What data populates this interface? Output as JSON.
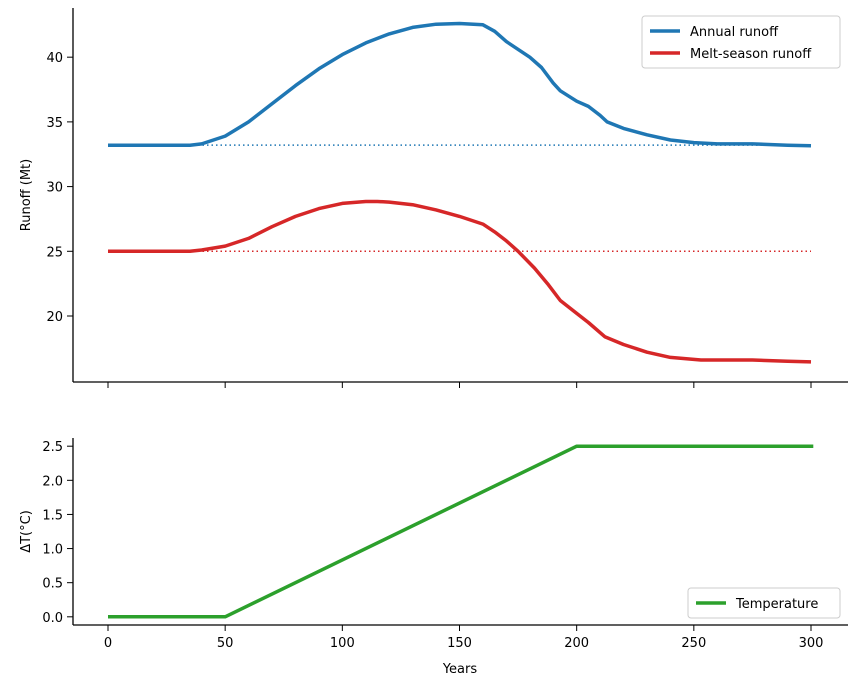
{
  "chart_data": [
    {
      "type": "line",
      "title": "",
      "xlabel": "",
      "ylabel": "Runoff (Mt)",
      "xlim": [
        -15,
        315
      ],
      "ylim": [
        14.9,
        43.8
      ],
      "xticks": [
        0,
        50,
        100,
        150,
        200,
        250,
        300
      ],
      "yticks": [
        20,
        25,
        30,
        35,
        40
      ],
      "legend_position": "top-right",
      "series": [
        {
          "name": "Annual runoff",
          "color": "#1f77b4",
          "x": [
            0,
            35,
            40,
            50,
            60,
            70,
            80,
            90,
            100,
            110,
            120,
            130,
            140,
            150,
            160,
            165,
            170,
            180,
            185,
            190,
            193,
            200,
            205,
            210,
            213,
            220,
            230,
            240,
            250,
            260,
            275,
            290,
            300
          ],
          "y": [
            33.2,
            33.2,
            33.3,
            33.9,
            35.0,
            36.4,
            37.8,
            39.1,
            40.2,
            41.1,
            41.8,
            42.3,
            42.55,
            42.6,
            42.5,
            42.0,
            41.2,
            40.0,
            39.2,
            38.0,
            37.4,
            36.6,
            36.2,
            35.5,
            35.0,
            34.5,
            34.0,
            33.6,
            33.4,
            33.3,
            33.3,
            33.2,
            33.15
          ]
        },
        {
          "name": "Melt-season runoff",
          "color": "#d62728",
          "x": [
            0,
            35,
            40,
            50,
            60,
            70,
            80,
            90,
            100,
            110,
            115,
            120,
            130,
            140,
            150,
            160,
            165,
            170,
            175,
            182,
            188,
            193,
            200,
            205,
            212,
            220,
            230,
            240,
            253,
            275,
            290,
            300
          ],
          "y": [
            25,
            25,
            25.1,
            25.4,
            26.0,
            26.9,
            27.7,
            28.3,
            28.7,
            28.85,
            28.85,
            28.8,
            28.6,
            28.2,
            27.7,
            27.1,
            26.5,
            25.8,
            25.0,
            23.7,
            22.4,
            21.2,
            20.2,
            19.5,
            18.4,
            17.8,
            17.2,
            16.8,
            16.6,
            16.6,
            16.5,
            16.45
          ]
        }
      ],
      "baselines": [
        {
          "value": 33.2,
          "color": "#1f77b4",
          "style": "dotted"
        },
        {
          "value": 25.0,
          "color": "#d62728",
          "style": "dotted"
        }
      ]
    },
    {
      "type": "line",
      "title": "",
      "xlabel": "Years",
      "ylabel": "ΔT(°C)",
      "xlim": [
        -15,
        315
      ],
      "ylim": [
        -0.12,
        2.62
      ],
      "xticks": [
        0,
        50,
        100,
        150,
        200,
        250,
        300
      ],
      "yticks": [
        0.0,
        0.5,
        1.0,
        1.5,
        2.0,
        2.5
      ],
      "legend_position": "bottom-right",
      "series": [
        {
          "name": "Temperature",
          "color": "#2ca02c",
          "x": [
            0,
            50,
            200,
            301
          ],
          "y": [
            0,
            0,
            2.5,
            2.5
          ]
        }
      ]
    }
  ]
}
